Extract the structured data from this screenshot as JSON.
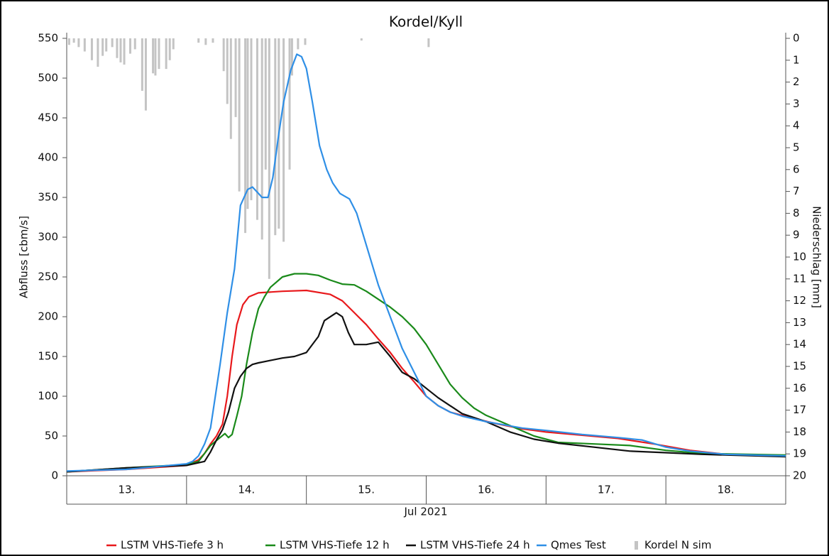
{
  "chart_data": {
    "type": "line",
    "title": "Kordel/Kyll",
    "ylabel": "Abfluss [cbm/s]",
    "y2label": "Niederschlag [mm]",
    "xlabel": "Jul 2021",
    "xlim": [
      13,
      19
    ],
    "xticks": [
      {
        "value": 13.5,
        "label": "13."
      },
      {
        "value": 14.5,
        "label": "14."
      },
      {
        "value": 15.5,
        "label": "15."
      },
      {
        "value": 16.5,
        "label": "16."
      },
      {
        "value": 17.5,
        "label": "17."
      },
      {
        "value": 18.5,
        "label": "18."
      }
    ],
    "ylim": [
      0,
      550
    ],
    "yticks": [
      0,
      50,
      100,
      150,
      200,
      250,
      300,
      350,
      400,
      450,
      500,
      550
    ],
    "y2lim": [
      0,
      20
    ],
    "y2ticks": [
      0,
      1,
      2,
      3,
      4,
      5,
      6,
      7,
      8,
      9,
      10,
      11,
      12,
      13,
      14,
      15,
      16,
      17,
      18,
      19,
      20
    ],
    "y2_reversed": true,
    "series": [
      {
        "name": "LSTM VHS-Tiefe 3 h",
        "color": "#e8191c",
        "x": [
          13.0,
          13.5,
          14.0,
          14.1,
          14.15,
          14.2,
          14.25,
          14.3,
          14.34,
          14.38,
          14.42,
          14.47,
          14.52,
          14.6,
          14.8,
          15.0,
          15.2,
          15.3,
          15.4,
          15.5,
          15.6,
          15.7,
          15.8,
          15.9,
          16.0,
          16.1,
          16.2,
          16.4,
          16.6,
          16.8,
          17.0,
          17.3,
          17.6,
          17.9,
          18.2,
          18.5,
          19.0
        ],
        "values": [
          5,
          8,
          13,
          20,
          28,
          40,
          50,
          65,
          100,
          150,
          190,
          215,
          225,
          230,
          232,
          233,
          228,
          220,
          205,
          190,
          172,
          155,
          135,
          118,
          100,
          88,
          80,
          72,
          65,
          59,
          55,
          51,
          47,
          40,
          32,
          27,
          25
        ]
      },
      {
        "name": "LSTM VHS-Tiefe 12 h",
        "color": "#1a8a1a",
        "x": [
          13.0,
          13.5,
          14.0,
          14.1,
          14.15,
          14.2,
          14.28,
          14.32,
          14.35,
          14.38,
          14.42,
          14.46,
          14.5,
          14.55,
          14.6,
          14.65,
          14.7,
          14.8,
          14.9,
          15.0,
          15.1,
          15.2,
          15.3,
          15.4,
          15.5,
          15.6,
          15.7,
          15.8,
          15.9,
          16.0,
          16.1,
          16.2,
          16.3,
          16.4,
          16.5,
          16.7,
          16.9,
          17.1,
          17.4,
          17.7,
          18.0,
          18.3,
          19.0
        ],
        "values": [
          5,
          10,
          14,
          18,
          28,
          38,
          48,
          53,
          48,
          52,
          75,
          100,
          140,
          180,
          210,
          225,
          237,
          250,
          254,
          254,
          252,
          246,
          241,
          240,
          232,
          222,
          212,
          200,
          185,
          165,
          140,
          115,
          98,
          85,
          76,
          63,
          50,
          42,
          40,
          38,
          32,
          28,
          26
        ]
      },
      {
        "name": "LSTM VHS-Tiefe 24 h",
        "color": "#111111",
        "x": [
          13.0,
          13.5,
          14.0,
          14.15,
          14.2,
          14.25,
          14.3,
          14.35,
          14.4,
          14.45,
          14.5,
          14.55,
          14.6,
          14.7,
          14.8,
          14.9,
          15.0,
          15.1,
          15.15,
          15.25,
          15.3,
          15.35,
          15.4,
          15.5,
          15.6,
          15.7,
          15.8,
          15.9,
          16.0,
          16.1,
          16.2,
          16.3,
          16.5,
          16.7,
          16.9,
          17.1,
          17.4,
          17.7,
          18.0,
          18.3,
          19.0
        ],
        "values": [
          5,
          10,
          13,
          18,
          30,
          45,
          58,
          80,
          110,
          125,
          135,
          140,
          142,
          145,
          148,
          150,
          155,
          175,
          195,
          205,
          200,
          180,
          165,
          165,
          168,
          150,
          130,
          122,
          110,
          98,
          88,
          78,
          68,
          55,
          46,
          41,
          36,
          31,
          29,
          27,
          24
        ]
      },
      {
        "name": "Qmes Test",
        "color": "#2f8fe6",
        "x": [
          13.0,
          13.5,
          14.0,
          14.05,
          14.1,
          14.15,
          14.2,
          14.22,
          14.28,
          14.34,
          14.4,
          14.45,
          14.51,
          14.55,
          14.6,
          14.63,
          14.68,
          14.72,
          14.77,
          14.81,
          14.87,
          14.92,
          14.96,
          15.0,
          15.05,
          15.11,
          15.17,
          15.22,
          15.28,
          15.36,
          15.42,
          15.5,
          15.6,
          15.7,
          15.8,
          15.9,
          16.0,
          16.1,
          16.2,
          16.3,
          16.5,
          16.8,
          17.0,
          17.3,
          17.6,
          17.8,
          18.0,
          18.2,
          18.5,
          19.0
        ],
        "values": [
          6,
          8,
          15,
          18,
          25,
          40,
          60,
          80,
          140,
          205,
          260,
          340,
          360,
          363,
          355,
          350,
          350,
          375,
          430,
          470,
          510,
          530,
          527,
          512,
          470,
          415,
          385,
          368,
          355,
          348,
          330,
          290,
          240,
          200,
          160,
          130,
          100,
          88,
          80,
          75,
          68,
          60,
          57,
          52,
          48,
          45,
          36,
          31,
          27,
          25
        ]
      },
      {
        "name": "Kordel N sim",
        "color": "#c4c4c4",
        "axis": "y2",
        "kind": "bar",
        "x": [
          13.02,
          13.06,
          13.1,
          13.15,
          13.21,
          13.26,
          13.3,
          13.33,
          13.38,
          13.42,
          13.45,
          13.48,
          13.53,
          13.57,
          13.63,
          13.66,
          13.72,
          13.74,
          13.77,
          13.83,
          13.86,
          13.89,
          14.1,
          14.16,
          14.22,
          14.31,
          14.34,
          14.37,
          14.41,
          14.44,
          14.49,
          14.51,
          14.54,
          14.59,
          14.63,
          14.66,
          14.69,
          14.74,
          14.77,
          14.81,
          14.86,
          14.88,
          14.93,
          14.99,
          15.46,
          16.02
        ],
        "values": [
          0.3,
          0.2,
          0.4,
          0.6,
          1.0,
          1.3,
          0.8,
          0.6,
          0.4,
          0.9,
          1.1,
          1.2,
          0.7,
          0.5,
          2.4,
          3.3,
          1.6,
          1.7,
          1.4,
          1.4,
          1.0,
          0.5,
          0.2,
          0.3,
          0.2,
          1.5,
          3.0,
          4.6,
          3.6,
          7.0,
          8.9,
          7.8,
          7.4,
          8.3,
          9.2,
          6.0,
          11.0,
          9.0,
          8.7,
          9.3,
          6.0,
          1.7,
          0.5,
          0.3,
          0.1,
          0.4
        ]
      }
    ]
  }
}
